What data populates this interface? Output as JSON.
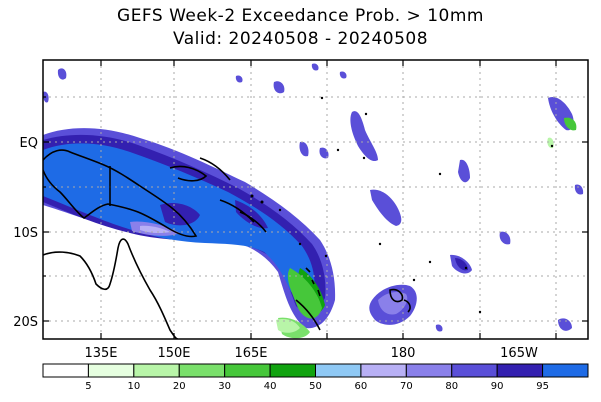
{
  "title": "GEFS Week-2 Exceedance Prob. > 10mm",
  "subtitle": "Valid: 20240508 - 20240508",
  "lat_labels": [
    "EQ",
    "10S",
    "20S"
  ],
  "lon_labels": [
    "135E",
    "150E",
    "165E",
    "180",
    "165W"
  ],
  "colorbar": {
    "levels": [
      "5",
      "10",
      "20",
      "30",
      "40",
      "50",
      "60",
      "70",
      "80",
      "90",
      "95"
    ],
    "colors": [
      "#ffffff",
      "#e6ffe0",
      "#b8f5a8",
      "#7ae06b",
      "#46c73a",
      "#11a310",
      "#8fc9f5",
      "#b8b0f5",
      "#8a80ea",
      "#5a4fd8",
      "#3320b0",
      "#1e6be6"
    ]
  },
  "colors": {
    "grid": "#aaaaaa",
    "coast": "#000000",
    "p95": "#1e6be6",
    "p90": "#3320b0",
    "p80": "#5a4fd8",
    "p70": "#8a80ea",
    "p60": "#b8b0f5",
    "g50": "#11a310",
    "g40": "#46c73a",
    "g30": "#7ae06b",
    "g20": "#b8f5a8"
  }
}
